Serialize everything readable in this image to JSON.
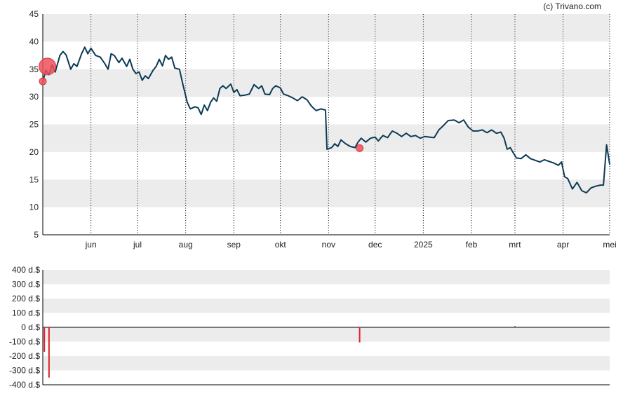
{
  "credit": "(c) Trivano.com",
  "colors": {
    "line": "#0c3a55",
    "band": "#ececec",
    "grid": "#000000",
    "marker": "#ef4f5a",
    "marker_stroke": "#d23a46",
    "bar_negative": "#e0202a",
    "bar_positive": "#2a6a5a"
  },
  "chart_data": [
    {
      "type": "line",
      "name": "price",
      "title": "",
      "xlabel": "",
      "ylabel": "",
      "ylim": [
        5,
        45
      ],
      "yticks": [
        5,
        10,
        15,
        20,
        25,
        30,
        35,
        40,
        45
      ],
      "grid": "vertical dotted at month boundaries; alternating horizontal bands",
      "x_range": [
        "2024-05-01",
        "2025-05-01"
      ],
      "month_ticks": [
        {
          "date": "2024-06-01",
          "label": "jun"
        },
        {
          "date": "2024-07-01",
          "label": "jul"
        },
        {
          "date": "2024-08-01",
          "label": "aug"
        },
        {
          "date": "2024-09-01",
          "label": "sep"
        },
        {
          "date": "2024-10-01",
          "label": "okt"
        },
        {
          "date": "2024-11-01",
          "label": "nov"
        },
        {
          "date": "2024-12-01",
          "label": "dec"
        },
        {
          "date": "2025-01-01",
          "label": "2025"
        },
        {
          "date": "2025-02-01",
          "label": "feb"
        },
        {
          "date": "2025-03-01",
          "label": "mrt"
        },
        {
          "date": "2025-04-01",
          "label": "apr"
        },
        {
          "date": "2025-05-01",
          "label": "mei"
        }
      ],
      "series": [
        {
          "points": [
            [
              "2024-05-01",
              32.8
            ],
            [
              "2024-05-03",
              34.8
            ],
            [
              "2024-05-05",
              34.0
            ],
            [
              "2024-05-07",
              35.8
            ],
            [
              "2024-05-09",
              34.5
            ],
            [
              "2024-05-12",
              37.5
            ],
            [
              "2024-05-14",
              38.2
            ],
            [
              "2024-05-16",
              37.6
            ],
            [
              "2024-05-19",
              35.0
            ],
            [
              "2024-05-21",
              36.0
            ],
            [
              "2024-05-23",
              35.5
            ],
            [
              "2024-05-26",
              37.8
            ],
            [
              "2024-05-28",
              39.0
            ],
            [
              "2024-05-30",
              37.8
            ],
            [
              "2024-06-01",
              38.8
            ],
            [
              "2024-06-04",
              37.5
            ],
            [
              "2024-06-07",
              37.2
            ],
            [
              "2024-06-10",
              36.0
            ],
            [
              "2024-06-12",
              35.0
            ],
            [
              "2024-06-14",
              37.8
            ],
            [
              "2024-06-16",
              37.5
            ],
            [
              "2024-06-19",
              36.2
            ],
            [
              "2024-06-21",
              37.0
            ],
            [
              "2024-06-24",
              35.5
            ],
            [
              "2024-06-26",
              36.8
            ],
            [
              "2024-06-28",
              35.0
            ],
            [
              "2024-06-30",
              34.2
            ],
            [
              "2024-07-02",
              34.5
            ],
            [
              "2024-07-04",
              33.0
            ],
            [
              "2024-07-06",
              33.8
            ],
            [
              "2024-07-08",
              33.3
            ],
            [
              "2024-07-11",
              34.8
            ],
            [
              "2024-07-13",
              35.5
            ],
            [
              "2024-07-15",
              36.8
            ],
            [
              "2024-07-17",
              35.6
            ],
            [
              "2024-07-19",
              37.5
            ],
            [
              "2024-07-21",
              36.8
            ],
            [
              "2024-07-23",
              37.2
            ],
            [
              "2024-07-25",
              35.2
            ],
            [
              "2024-07-28",
              35.0
            ],
            [
              "2024-07-30",
              32.5
            ],
            [
              "2024-08-02",
              29.0
            ],
            [
              "2024-08-04",
              27.8
            ],
            [
              "2024-08-07",
              28.2
            ],
            [
              "2024-08-09",
              28.0
            ],
            [
              "2024-08-11",
              26.8
            ],
            [
              "2024-08-13",
              28.5
            ],
            [
              "2024-08-15",
              27.5
            ],
            [
              "2024-08-17",
              29.0
            ],
            [
              "2024-08-19",
              29.8
            ],
            [
              "2024-08-21",
              29.2
            ],
            [
              "2024-08-23",
              31.5
            ],
            [
              "2024-08-25",
              32.0
            ],
            [
              "2024-08-27",
              31.5
            ],
            [
              "2024-08-30",
              32.3
            ],
            [
              "2024-09-01",
              30.8
            ],
            [
              "2024-09-03",
              31.3
            ],
            [
              "2024-09-05",
              30.2
            ],
            [
              "2024-09-08",
              30.3
            ],
            [
              "2024-09-11",
              30.5
            ],
            [
              "2024-09-14",
              32.2
            ],
            [
              "2024-09-17",
              31.5
            ],
            [
              "2024-09-19",
              32.0
            ],
            [
              "2024-09-21",
              30.5
            ],
            [
              "2024-09-24",
              30.4
            ],
            [
              "2024-09-26",
              31.5
            ],
            [
              "2024-09-28",
              32.0
            ],
            [
              "2024-10-01",
              31.6
            ],
            [
              "2024-10-03",
              30.5
            ],
            [
              "2024-10-06",
              30.2
            ],
            [
              "2024-10-09",
              29.8
            ],
            [
              "2024-10-12",
              29.3
            ],
            [
              "2024-10-15",
              30.0
            ],
            [
              "2024-10-18",
              29.5
            ],
            [
              "2024-10-21",
              28.3
            ],
            [
              "2024-10-24",
              27.5
            ],
            [
              "2024-10-27",
              27.8
            ],
            [
              "2024-10-30",
              27.6
            ],
            [
              "2024-10-31",
              20.5
            ],
            [
              "2024-11-03",
              20.8
            ],
            [
              "2024-11-05",
              21.5
            ],
            [
              "2024-11-07",
              21.0
            ],
            [
              "2024-11-09",
              22.2
            ],
            [
              "2024-11-12",
              21.5
            ],
            [
              "2024-11-15",
              21.0
            ],
            [
              "2024-11-18",
              20.8
            ],
            [
              "2024-11-20",
              21.8
            ],
            [
              "2024-11-22",
              22.5
            ],
            [
              "2024-11-25",
              21.8
            ],
            [
              "2024-11-28",
              22.5
            ],
            [
              "2024-12-01",
              22.7
            ],
            [
              "2024-12-03",
              22.0
            ],
            [
              "2024-12-06",
              23.0
            ],
            [
              "2024-12-09",
              22.6
            ],
            [
              "2024-12-12",
              23.8
            ],
            [
              "2024-12-15",
              23.4
            ],
            [
              "2024-12-18",
              22.8
            ],
            [
              "2024-12-21",
              23.4
            ],
            [
              "2024-12-24",
              22.8
            ],
            [
              "2024-12-27",
              23.0
            ],
            [
              "2024-12-30",
              22.5
            ],
            [
              "2025-01-02",
              22.8
            ],
            [
              "2025-01-05",
              22.7
            ],
            [
              "2025-01-08",
              22.6
            ],
            [
              "2025-01-11",
              24.0
            ],
            [
              "2025-01-14",
              24.8
            ],
            [
              "2025-01-17",
              25.7
            ],
            [
              "2025-01-21",
              25.8
            ],
            [
              "2025-01-24",
              25.3
            ],
            [
              "2025-01-27",
              25.8
            ],
            [
              "2025-01-30",
              24.5
            ],
            [
              "2025-02-02",
              23.8
            ],
            [
              "2025-02-05",
              23.8
            ],
            [
              "2025-02-08",
              24.0
            ],
            [
              "2025-02-11",
              23.5
            ],
            [
              "2025-02-14",
              24.0
            ],
            [
              "2025-02-17",
              23.4
            ],
            [
              "2025-02-20",
              23.6
            ],
            [
              "2025-02-22",
              22.5
            ],
            [
              "2025-02-24",
              20.5
            ],
            [
              "2025-02-26",
              20.8
            ],
            [
              "2025-02-28",
              19.8
            ],
            [
              "2025-03-02",
              18.9
            ],
            [
              "2025-03-05",
              18.8
            ],
            [
              "2025-03-08",
              19.5
            ],
            [
              "2025-03-11",
              18.8
            ],
            [
              "2025-03-14",
              18.5
            ],
            [
              "2025-03-17",
              18.2
            ],
            [
              "2025-03-20",
              18.6
            ],
            [
              "2025-03-23",
              18.3
            ],
            [
              "2025-03-26",
              18.0
            ],
            [
              "2025-03-29",
              17.6
            ],
            [
              "2025-03-31",
              18.2
            ],
            [
              "2025-04-02",
              15.5
            ],
            [
              "2025-04-04",
              15.2
            ],
            [
              "2025-04-07",
              13.3
            ],
            [
              "2025-04-10",
              14.5
            ],
            [
              "2025-04-13",
              13.0
            ],
            [
              "2025-04-16",
              12.6
            ],
            [
              "2025-04-19",
              13.5
            ],
            [
              "2025-04-22",
              13.8
            ],
            [
              "2025-04-25",
              14.0
            ],
            [
              "2025-04-27",
              14.0
            ],
            [
              "2025-04-29",
              21.3
            ],
            [
              "2025-05-01",
              17.8
            ]
          ]
        }
      ],
      "markers": [
        {
          "date": "2024-05-01",
          "value": 32.8,
          "size": "small"
        },
        {
          "date": "2024-05-04",
          "value": 35.5,
          "size": "large"
        },
        {
          "date": "2024-11-21",
          "value": 20.7,
          "size": "small"
        }
      ]
    },
    {
      "type": "bar",
      "name": "transactions",
      "title": "",
      "xlabel": "",
      "ylabel": "",
      "ylim": [
        -400,
        400
      ],
      "yticks": [
        -400,
        -300,
        -200,
        -100,
        0,
        100,
        200,
        300,
        400
      ],
      "ytick_labels": [
        "-400 d.$",
        "-300 d.$",
        "-200 d.$",
        "-100 d.$",
        "0 d.$",
        "100 d.$",
        "200 d.$",
        "300 d.$",
        "400 d.$"
      ],
      "bars": [
        {
          "date": "2024-05-02",
          "value": -170
        },
        {
          "date": "2024-05-05",
          "value": -350
        },
        {
          "date": "2024-11-01",
          "value": 4
        },
        {
          "date": "2024-11-21",
          "value": -105
        },
        {
          "date": "2025-03-01",
          "value": 8
        }
      ]
    }
  ]
}
